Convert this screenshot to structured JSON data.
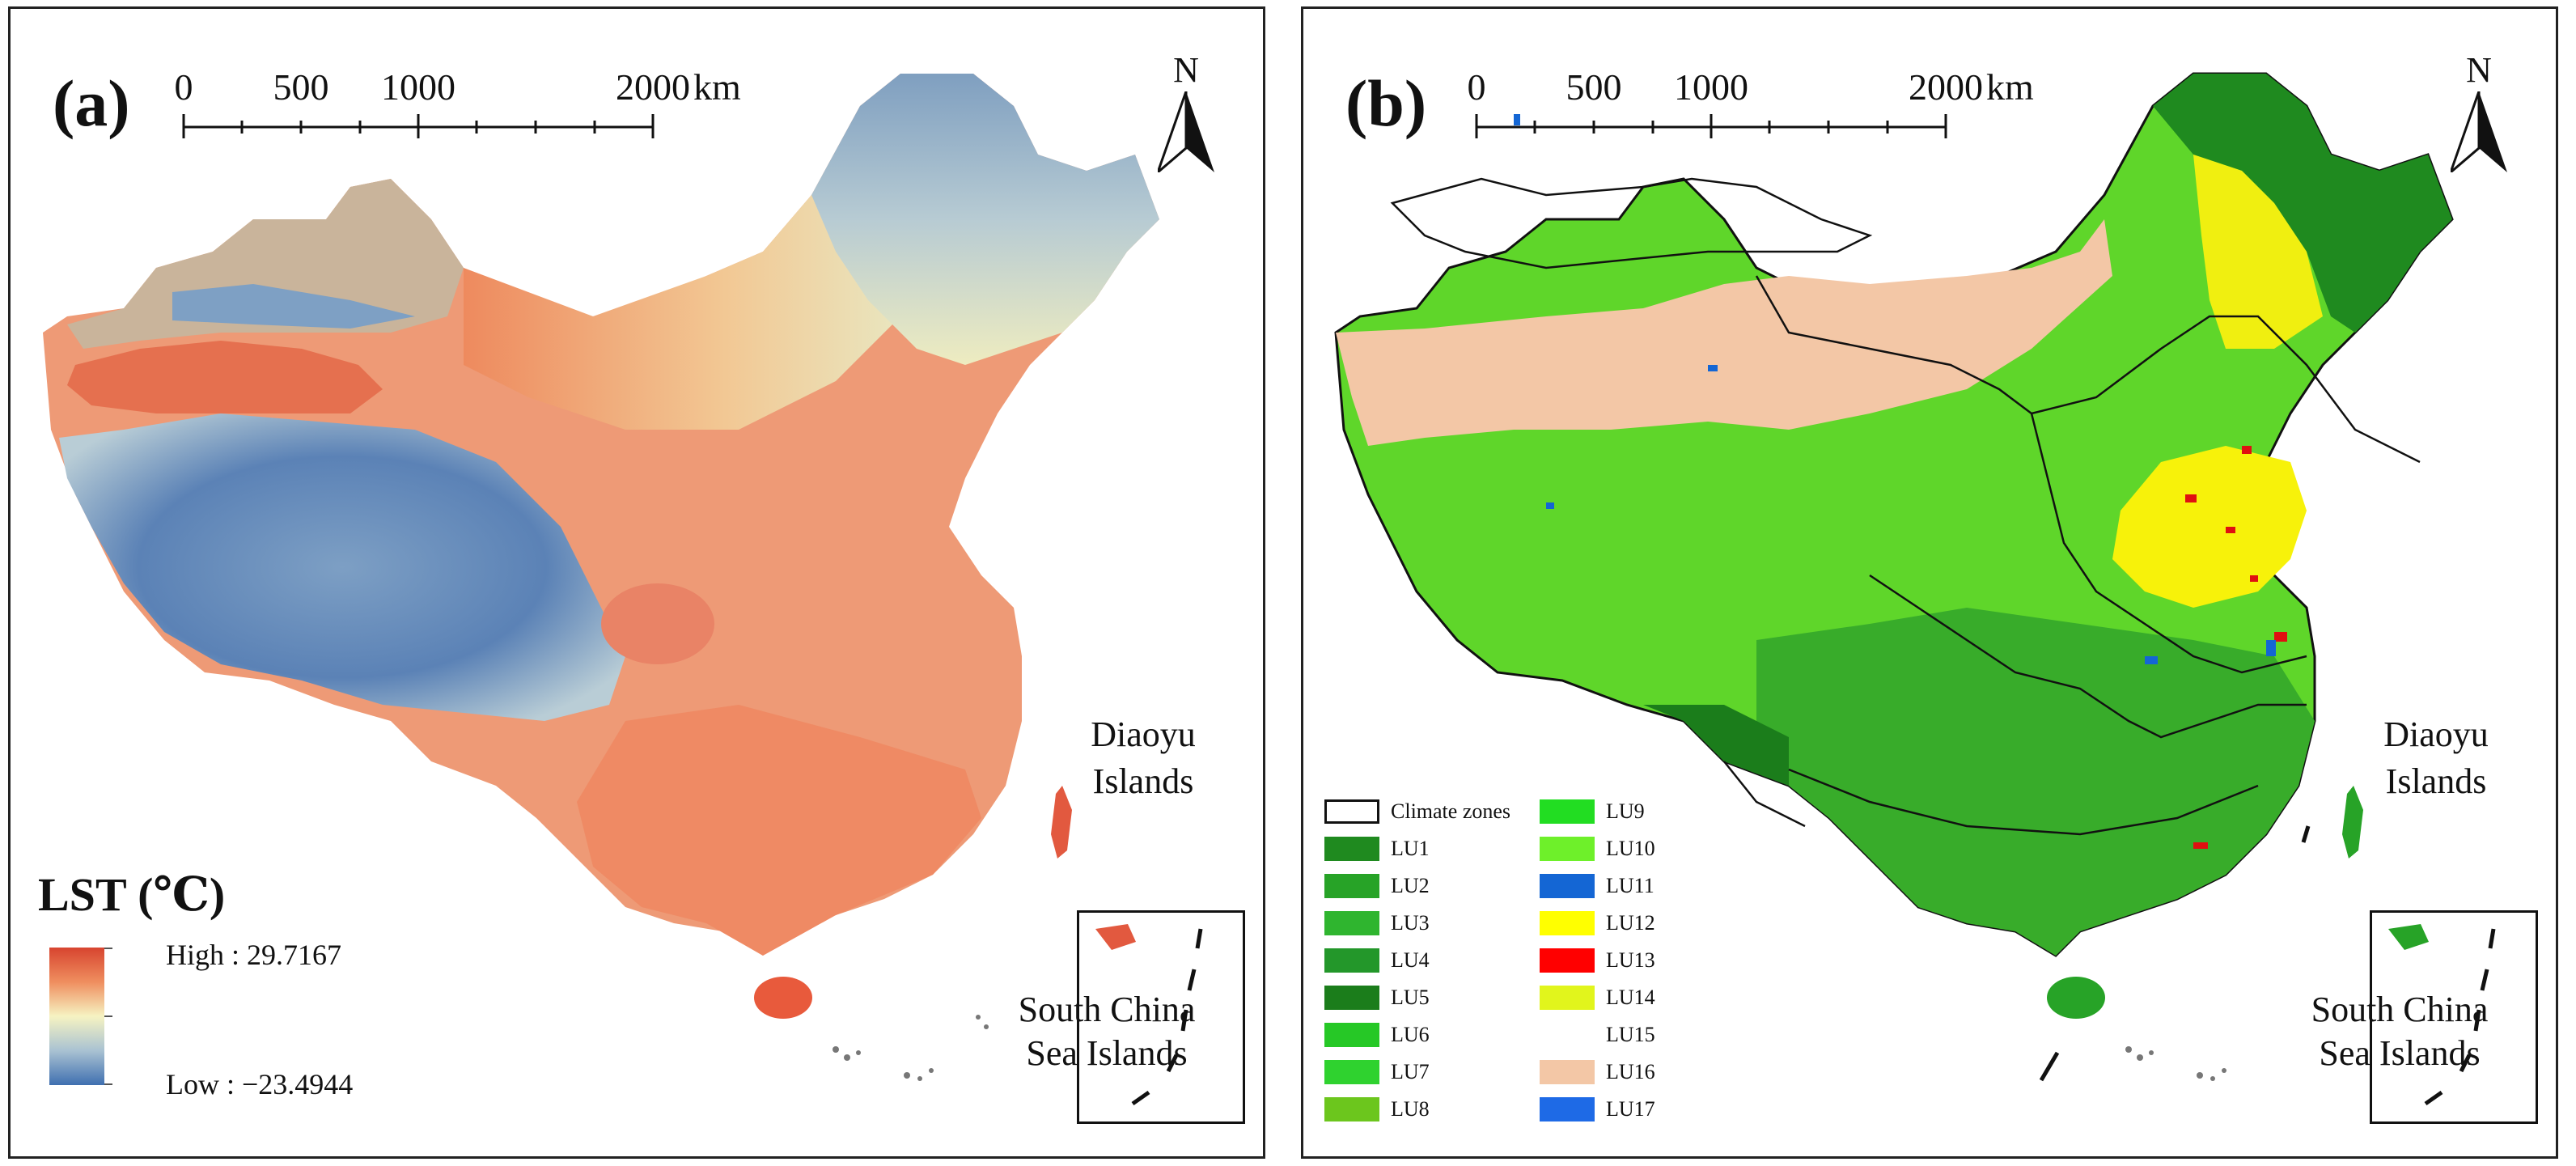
{
  "panel_a": {
    "label": "(a)",
    "scale": {
      "ticks": [
        "0",
        "500",
        "1000",
        "2000"
      ],
      "unit": "km"
    },
    "north": "N",
    "legend": {
      "title": "LST (℃)",
      "high": "High : 29.7167",
      "low": "Low : −23.4944"
    },
    "annotations": {
      "diaoyu": [
        "Diaoyu",
        "Islands"
      ],
      "scs": [
        "South China",
        "Sea Islands"
      ]
    }
  },
  "panel_b": {
    "label": "(b)",
    "scale": {
      "ticks": [
        "0",
        "500",
        "1000",
        "2000"
      ],
      "unit": "km"
    },
    "north": "N",
    "annotations": {
      "diaoyu": [
        "Diaoyu",
        "Islands"
      ],
      "scs": [
        "South China",
        "Sea Islands"
      ]
    },
    "legend": [
      {
        "label": "Climate zones",
        "color": "#ffffff"
      },
      {
        "label": "LU1",
        "color": "#1f8a1f"
      },
      {
        "label": "LU2",
        "color": "#27a327"
      },
      {
        "label": "LU3",
        "color": "#2fb52f"
      },
      {
        "label": "LU4",
        "color": "#23972a"
      },
      {
        "label": "LU5",
        "color": "#1b7d1b"
      },
      {
        "label": "LU6",
        "color": "#26c826"
      },
      {
        "label": "LU7",
        "color": "#2fd22f"
      },
      {
        "label": "LU8",
        "color": "#6cc61d"
      },
      {
        "label": "LU9",
        "color": "#22dd22"
      },
      {
        "label": "LU10",
        "color": "#6ef02a"
      },
      {
        "label": "LU11",
        "color": "#1466d4"
      },
      {
        "label": "LU12",
        "color": "#ffff00"
      },
      {
        "label": "LU13",
        "color": "#ff0000"
      },
      {
        "label": "LU14",
        "color": "#e1f51c"
      },
      {
        "label": "LU15",
        "color": "#ffffff"
      },
      {
        "label": "LU16",
        "color": "#f3c7a6"
      },
      {
        "label": "LU17",
        "color": "#1e6ae6"
      }
    ]
  }
}
